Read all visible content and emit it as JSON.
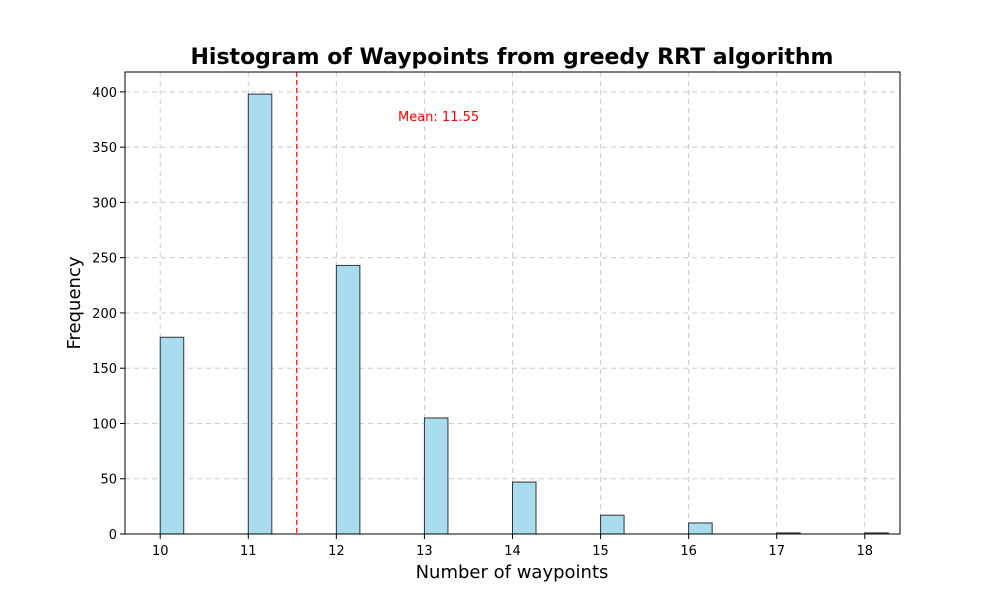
{
  "chart_data": {
    "type": "bar",
    "title": "Histogram of Waypoints from greedy RRT algorithm",
    "xlabel": "Number of waypoints",
    "ylabel": "Frequency",
    "xlim": [
      9.6,
      18.4
    ],
    "ylim": [
      0,
      418
    ],
    "x_ticks": [
      10,
      11,
      12,
      13,
      14,
      15,
      16,
      17,
      18
    ],
    "y_ticks": [
      0,
      50,
      100,
      150,
      200,
      250,
      300,
      350,
      400
    ],
    "bin_width": 0.267,
    "bars": [
      {
        "x": 10,
        "value": 178
      },
      {
        "x": 11,
        "value": 398
      },
      {
        "x": 12,
        "value": 243
      },
      {
        "x": 13,
        "value": 105
      },
      {
        "x": 14,
        "value": 47
      },
      {
        "x": 15,
        "value": 17
      },
      {
        "x": 16,
        "value": 10
      },
      {
        "x": 17,
        "value": 1
      },
      {
        "x": 18,
        "value": 1
      }
    ],
    "bar_color": "#a8dcee",
    "edge_color": "#333333",
    "grid": true,
    "mean": {
      "value": 11.55,
      "label": "Mean: 11.55",
      "color": "#ff0000"
    }
  }
}
